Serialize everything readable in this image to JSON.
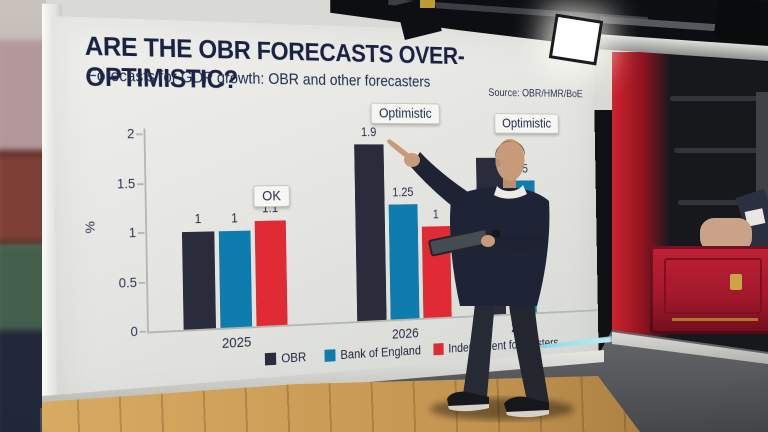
{
  "screen": {
    "title": "ARE THE OBR FORECASTS OVER-OPTIMISTIC?",
    "subtitle": "Forecasts for GDP growth: OBR and other forecasters",
    "source": "Source: OBR/HMR/BoE"
  },
  "chart_data": {
    "type": "bar",
    "title": "Forecasts for GDP growth: OBR and other forecasters",
    "ylabel": "%",
    "ylim": [
      0,
      2
    ],
    "yticks": [
      0,
      0.5,
      1,
      1.5,
      2
    ],
    "ytick_labels": [
      "0",
      "0.5",
      "1",
      "1.5",
      "2"
    ],
    "grid": false,
    "categories": [
      "2025",
      "2026",
      "2027"
    ],
    "series": [
      {
        "name": "OBR",
        "color": "#2a2b3b",
        "values": [
          1,
          1.9,
          null
        ],
        "labels": [
          "1",
          "1.9",
          null
        ],
        "occluded": [
          false,
          false,
          true
        ]
      },
      {
        "name": "Bank of England",
        "color": "#0f7cae",
        "values": [
          1,
          1.25,
          1.5
        ],
        "labels": [
          "1",
          "1.25",
          "1.5"
        ],
        "occluded": [
          false,
          false,
          false
        ]
      },
      {
        "name": "Independent forecasters",
        "color": "#e02b34",
        "values": [
          1.1,
          1,
          null
        ],
        "labels": [
          "1.1",
          "1",
          null
        ],
        "occluded": [
          false,
          false,
          true
        ]
      }
    ],
    "annotations": [
      {
        "text": "OK",
        "category": "2025"
      },
      {
        "text": "Optimistic",
        "category": "2026"
      },
      {
        "text": "Optimistic",
        "category": "2027"
      }
    ],
    "legend_position": "bottom"
  },
  "scene_colors": {
    "screen_background": "#e8e9e5",
    "title_navy": "#1b2144",
    "budget_box_red": "#b01c2e",
    "door_black": "#17181c",
    "floor_wood": "#c49551",
    "floor_gray": "#55585a"
  }
}
